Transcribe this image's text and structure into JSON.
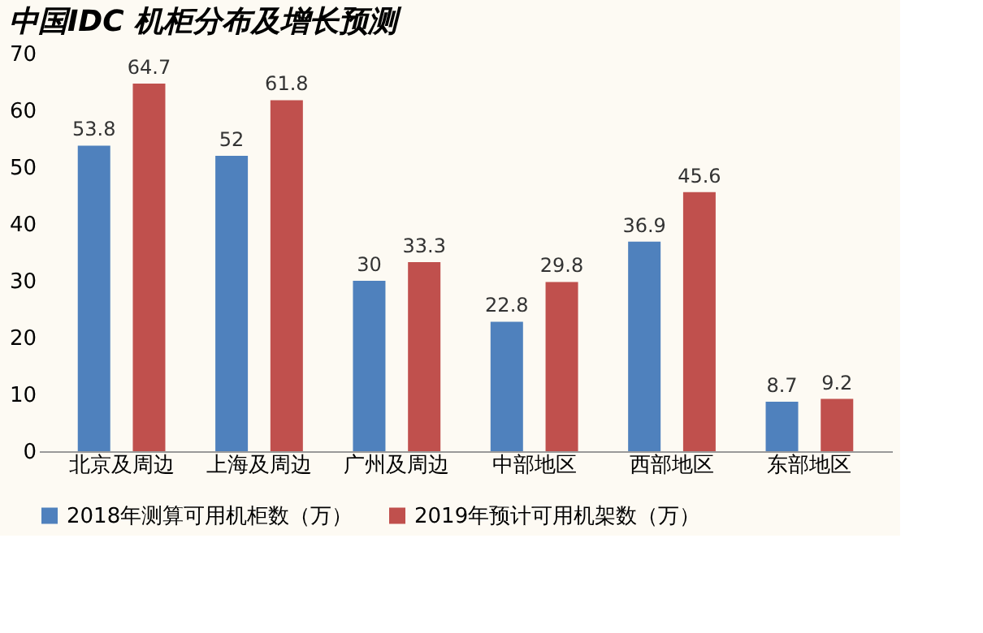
{
  "chart_data": {
    "type": "bar",
    "title": "中国IDC 机柜分布及增长预测",
    "categories": [
      "北京及周边",
      "上海及周边",
      "广州及周边",
      "中部地区",
      "西部地区",
      "东部地区"
    ],
    "series": [
      {
        "name": "2018年测算可用机柜数（万）",
        "color": "#4f81bd",
        "values": [
          53.8,
          52,
          30,
          22.8,
          36.9,
          8.7
        ]
      },
      {
        "name": "2019年预计可用机架数（万）",
        "color": "#c0504d",
        "values": [
          64.7,
          61.8,
          33.3,
          29.8,
          45.6,
          9.2
        ]
      }
    ],
    "ylim": [
      0,
      70
    ],
    "yticks": [
      0,
      10,
      20,
      30,
      40,
      50,
      60,
      70
    ],
    "grid": false,
    "legend": "bottom",
    "data_labels": true
  }
}
